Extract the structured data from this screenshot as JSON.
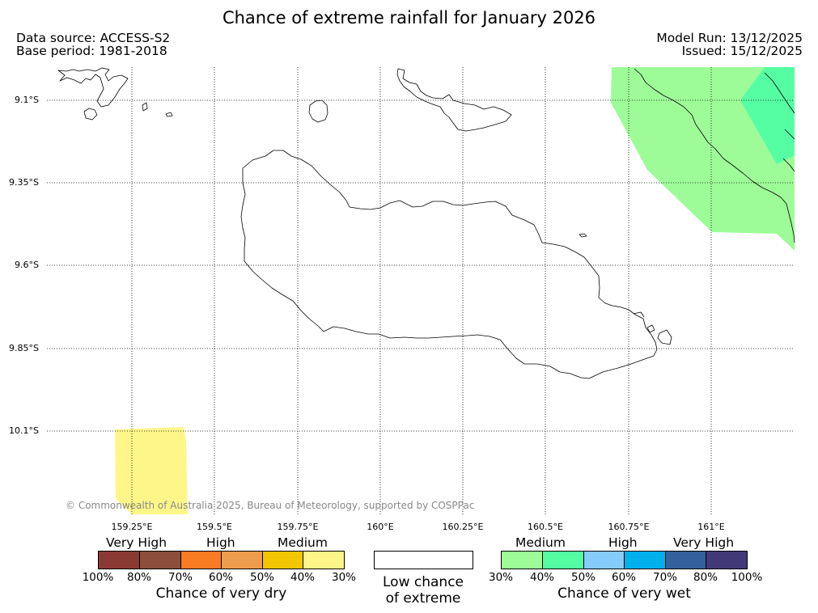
{
  "title": "Chance of extreme rainfall for January 2026",
  "data_source": "Data source: ACCESS-S2",
  "base_period": "Base period: 1981-2018",
  "model_run": "Model Run: 13/12/2025",
  "issued": "Issued: 15/12/2025",
  "map": {
    "lat_labels": [
      "9.1°S",
      "9.35°S",
      "9.6°S",
      "9.85°S",
      "10.1°S"
    ],
    "lon_labels": [
      "159.25°E",
      "159.5°E",
      "159.75°E",
      "160°E",
      "160.25°E",
      "160.5°E",
      "160.75°E",
      "161°E"
    ],
    "copyright": "© Commonwealth of Australia 2025, Bureau of Meteorology, supported by COSPPac"
  },
  "legend": {
    "dry": {
      "levels": [
        "Very High",
        "High",
        "Medium"
      ],
      "ticks": [
        "100%",
        "80%",
        "70%",
        "60%",
        "50%",
        "40%",
        "30%"
      ],
      "colors": [
        "#8b3a33",
        "#8b4f3c",
        "#f97c24",
        "#ee9d4f",
        "#f1c800",
        "#fff68a"
      ],
      "caption": "Chance of very dry"
    },
    "low": {
      "line1": "Low chance",
      "line2": "of extreme"
    },
    "wet": {
      "levels": [
        "Medium",
        "High",
        "Very High"
      ],
      "ticks": [
        "30%",
        "40%",
        "50%",
        "60%",
        "70%",
        "80%",
        "100%"
      ],
      "colors": [
        "#9dfc98",
        "#56fea3",
        "#86ccfb",
        "#00b0ed",
        "#35619d",
        "#423a78"
      ],
      "caption": "Chance of very wet"
    }
  }
}
